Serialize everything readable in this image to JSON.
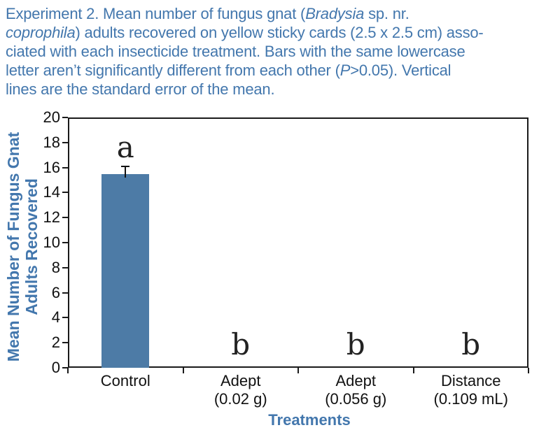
{
  "figure": {
    "caption_color": "#4377ad",
    "caption_lines": [
      [
        {
          "t": "Experiment 2. Mean number of fungus gnat ("
        },
        {
          "t": "Bradysia",
          "i": true
        },
        {
          "t": " sp. nr."
        }
      ],
      [
        {
          "t": "coprophila",
          "i": true
        },
        {
          "t": ") adults recovered on yellow sticky cards (2.5 x 2.5 cm) asso-"
        }
      ],
      [
        {
          "t": "ciated with each insecticide treatment. Bars with the same lowercase"
        }
      ],
      [
        {
          "t": "letter aren’t significantly different from each other ("
        },
        {
          "t": "P",
          "i": true
        },
        {
          "t": ">0.05). Vertical"
        }
      ],
      [
        {
          "t": "lines are the standard error of the mean."
        }
      ]
    ]
  },
  "chart_data": {
    "type": "bar",
    "title": "",
    "xlabel": "Treatments",
    "ylabel": "Mean Number of Fungus Gnat Adults Recovered",
    "ylabel_lines": [
      "Mean Number of Fungus Gnat",
      "Adults Recovered"
    ],
    "categories": [
      "Control",
      "Adept (0.02 g)",
      "Adept (0.056 g)",
      "Distance (0.109 mL)"
    ],
    "category_label_lines": [
      [
        "Control"
      ],
      [
        "Adept",
        "(0.02 g)"
      ],
      [
        "Adept",
        "(0.056 g)"
      ],
      [
        "Distance",
        "(0.109 mL)"
      ]
    ],
    "values": [
      15.5,
      0,
      0,
      0
    ],
    "std_errors": [
      0.6,
      0,
      0,
      0
    ],
    "sig_letters": [
      "a",
      "b",
      "b",
      "b"
    ],
    "ylim": [
      0,
      20
    ],
    "ytick_step": 2,
    "ytick_labels": [
      "0",
      "2",
      "4",
      "6",
      "8",
      "10",
      "12",
      "14",
      "16",
      "18",
      "20"
    ],
    "grid": false,
    "legend": null,
    "bar_color": "#4d7ba6",
    "axis_color": "#1a1a1a",
    "axis_title_color": "#4377ad"
  }
}
